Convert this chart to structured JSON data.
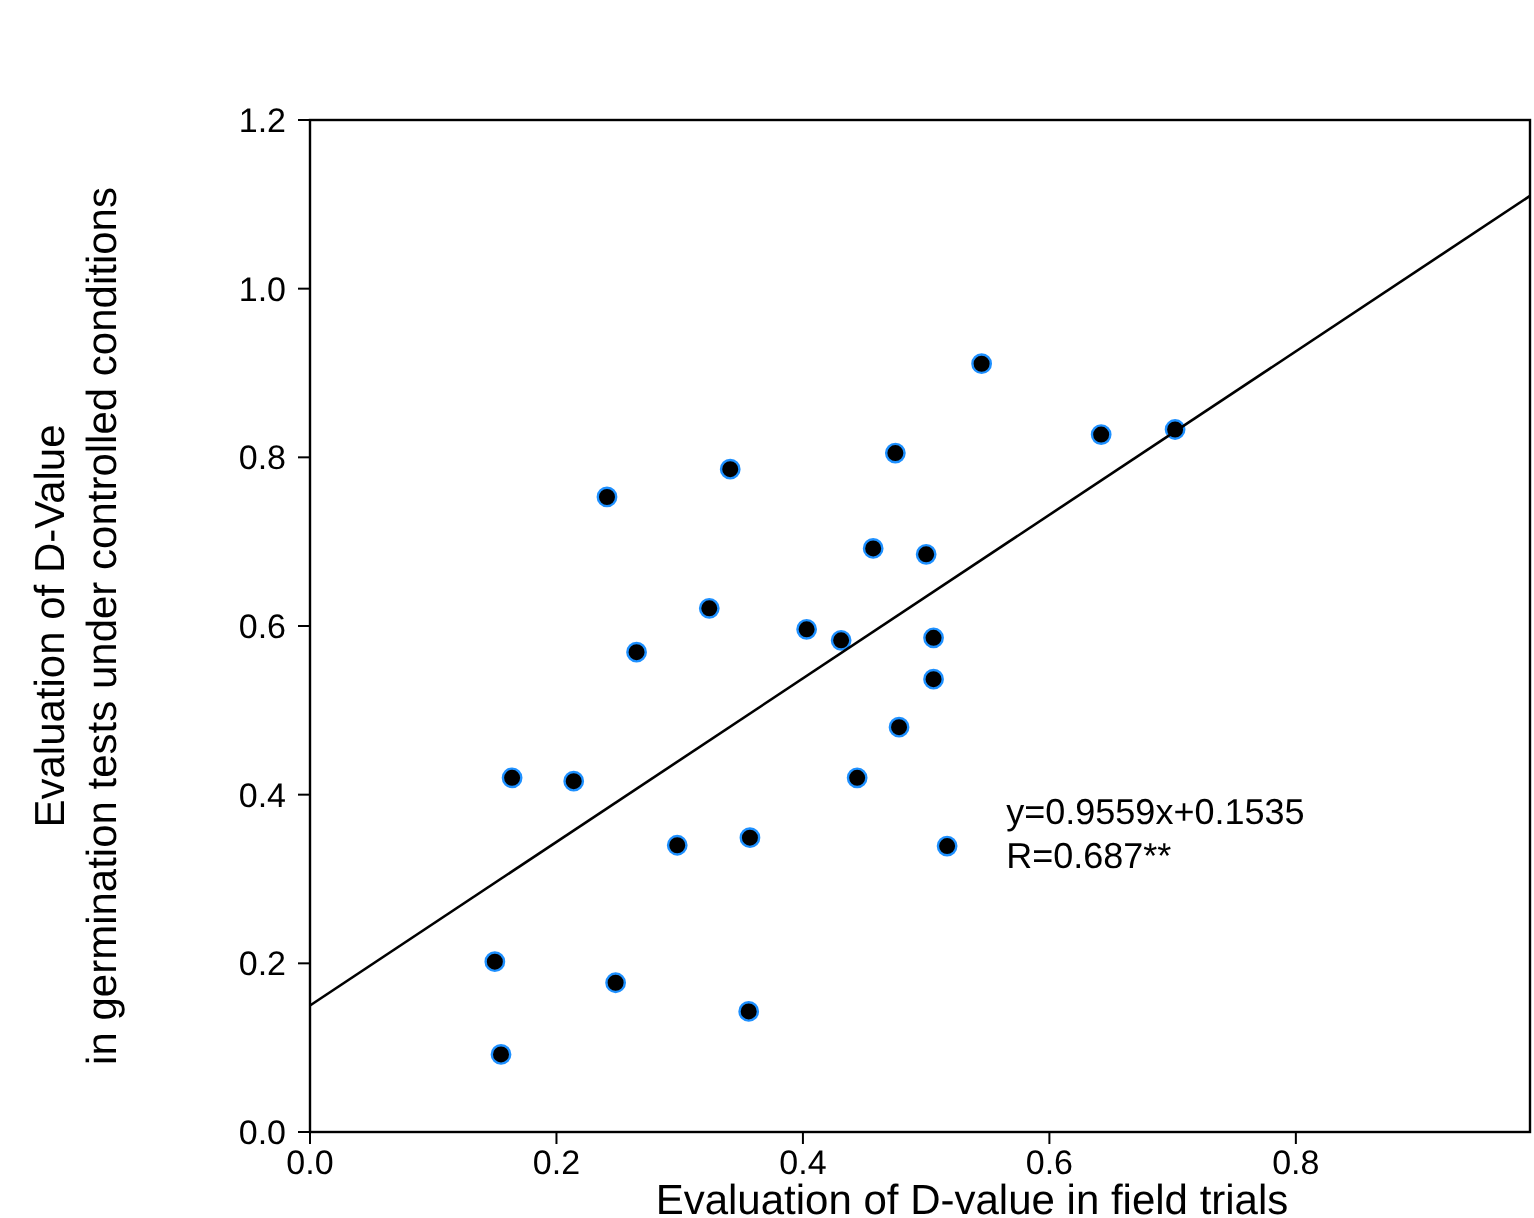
{
  "chart_data": {
    "type": "scatter",
    "xlabel": "Evaluation of D-value in field trials",
    "ylabel": "Evaluation of D-Value\nin germination tests under controlled conditions",
    "xlim": [
      0,
      0.99
    ],
    "ylim": [
      0,
      1.2
    ],
    "xticks": [
      {
        "value": 0,
        "label": "0.0"
      },
      0.2,
      0.4,
      0.6,
      0.8
    ],
    "yticks": [
      {
        "value": 0,
        "label": "0.0"
      },
      0.2,
      0.4,
      0.6,
      0.8,
      {
        "value": 1,
        "label": "1.0"
      },
      1.2
    ],
    "grid": false,
    "annotations": [
      "y=0.9559x+0.1535",
      "R=0.687**"
    ],
    "series": [
      {
        "color": "#000000",
        "marker": "circle",
        "x": [
          0.15,
          0.155,
          0.164,
          0.214,
          0.241,
          0.248,
          0.265,
          0.298,
          0.324,
          0.341,
          0.357,
          0.356,
          0.403,
          0.431,
          0.444,
          0.457,
          0.475,
          0.478,
          0.5,
          0.506,
          0.506,
          0.545,
          0.642,
          0.702,
          0.517
        ],
        "values": [
          0.202,
          0.092,
          0.42,
          0.416,
          0.753,
          0.177,
          0.569,
          0.34,
          0.621,
          0.786,
          0.349,
          0.143,
          0.596,
          0.583,
          0.42,
          0.692,
          0.805,
          0.48,
          0.685,
          0.586,
          0.537,
          0.911,
          0.827,
          0.833,
          0.339
        ]
      },
      {
        "type": "line",
        "color": "#000000",
        "line_style": "solid",
        "x": [
          0,
          0.99
        ],
        "values": [
          0.15,
          1.11
        ]
      }
    ]
  }
}
